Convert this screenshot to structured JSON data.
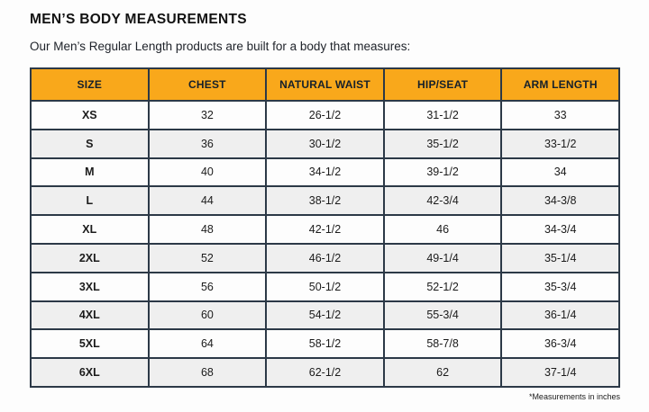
{
  "page": {
    "title": "MEN’S BODY MEASUREMENTS",
    "subtitle": "Our Men’s Regular Length products are built for a body that measures:",
    "footnote": "*Measurements in inches"
  },
  "colors": {
    "header_bg": "#F9A81B",
    "header_text": "#15202B",
    "inner_border": "#2C3947",
    "outer_border": "#3A6196",
    "row_bg": "#FDFDFD",
    "row_alt_bg": "#EFEFEF"
  },
  "table": {
    "columns": [
      "SIZE",
      "CHEST",
      "NATURAL WAIST",
      "HIP/SEAT",
      "ARM LENGTH"
    ],
    "rows": [
      [
        "XS",
        "32",
        "26-1/2",
        "31-1/2",
        "33"
      ],
      [
        "S",
        "36",
        "30-1/2",
        "35-1/2",
        "33-1/2"
      ],
      [
        "M",
        "40",
        "34-1/2",
        "39-1/2",
        "34"
      ],
      [
        "L",
        "44",
        "38-1/2",
        "42-3/4",
        "34-3/8"
      ],
      [
        "XL",
        "48",
        "42-1/2",
        "46",
        "34-3/4"
      ],
      [
        "2XL",
        "52",
        "46-1/2",
        "49-1/4",
        "35-1/4"
      ],
      [
        "3XL",
        "56",
        "50-1/2",
        "52-1/2",
        "35-3/4"
      ],
      [
        "4XL",
        "60",
        "54-1/2",
        "55-3/4",
        "36-1/4"
      ],
      [
        "5XL",
        "64",
        "58-1/2",
        "58-7/8",
        "36-3/4"
      ],
      [
        "6XL",
        "68",
        "62-1/2",
        "62",
        "37-1/4"
      ]
    ]
  }
}
